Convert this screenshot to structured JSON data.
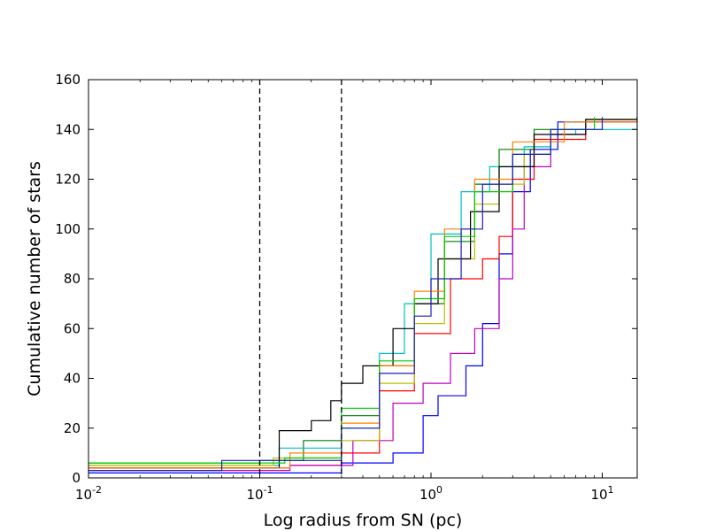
{
  "chart_data": {
    "type": "line",
    "step": true,
    "xscale": "log",
    "xlabel": "Log radius from SN (pc)",
    "ylabel": "Cumulative number of stars",
    "xlim": [
      0.01,
      16
    ],
    "ylim": [
      0,
      160
    ],
    "grid": false,
    "legend": "none",
    "x_ticks": [
      {
        "value": 0.01,
        "base": "10",
        "exp": "-2"
      },
      {
        "value": 0.1,
        "base": "10",
        "exp": "-1"
      },
      {
        "value": 1,
        "base": "10",
        "exp": "0"
      },
      {
        "value": 10,
        "base": "10",
        "exp": "1"
      }
    ],
    "y_ticks": [
      {
        "value": 0,
        "label": "0"
      },
      {
        "value": 20,
        "label": "20"
      },
      {
        "value": 40,
        "label": "40"
      },
      {
        "value": 60,
        "label": "60"
      },
      {
        "value": 80,
        "label": "80"
      },
      {
        "value": 100,
        "label": "100"
      },
      {
        "value": 120,
        "label": "120"
      },
      {
        "value": 140,
        "label": "140"
      },
      {
        "value": 160,
        "label": "160"
      }
    ],
    "vlines": [
      {
        "x": 0.1,
        "style": "dashed",
        "color": "#000000"
      },
      {
        "x": 0.3,
        "style": "dashed",
        "color": "#000000"
      }
    ],
    "series": [
      {
        "color": "#0000ff",
        "points": [
          [
            0.01,
            2
          ],
          [
            0.12,
            2
          ],
          [
            0.3,
            6
          ],
          [
            0.6,
            10
          ],
          [
            0.9,
            25
          ],
          [
            1.1,
            33
          ],
          [
            1.6,
            45
          ],
          [
            2.0,
            62
          ],
          [
            2.5,
            90
          ],
          [
            3.0,
            115
          ],
          [
            3.8,
            132
          ],
          [
            5.5,
            143
          ],
          [
            16,
            145
          ]
        ]
      },
      {
        "color": "#008000",
        "points": [
          [
            0.01,
            6
          ],
          [
            0.1,
            7
          ],
          [
            0.18,
            15
          ],
          [
            0.3,
            25
          ],
          [
            0.5,
            45
          ],
          [
            0.8,
            70
          ],
          [
            1.2,
            95
          ],
          [
            1.8,
            118
          ],
          [
            2.5,
            132
          ],
          [
            4.0,
            140
          ],
          [
            8.0,
            144
          ],
          [
            16,
            145
          ]
        ]
      },
      {
        "color": "#ff0000",
        "points": [
          [
            0.01,
            4
          ],
          [
            0.15,
            5
          ],
          [
            0.3,
            10
          ],
          [
            0.5,
            35
          ],
          [
            0.8,
            58
          ],
          [
            1.3,
            80
          ],
          [
            2.0,
            88
          ],
          [
            2.5,
            97
          ],
          [
            3.0,
            120
          ],
          [
            4.0,
            136
          ],
          [
            8.0,
            143
          ],
          [
            16,
            145
          ]
        ]
      },
      {
        "color": "#00bfbf",
        "points": [
          [
            0.01,
            5
          ],
          [
            0.13,
            12
          ],
          [
            0.3,
            20
          ],
          [
            0.5,
            50
          ],
          [
            0.7,
            70
          ],
          [
            1.0,
            98
          ],
          [
            1.5,
            115
          ],
          [
            2.2,
            125
          ],
          [
            3.5,
            133
          ],
          [
            5.0,
            138
          ],
          [
            7.0,
            140
          ],
          [
            16,
            145
          ]
        ]
      },
      {
        "color": "#bf00bf",
        "points": [
          [
            0.01,
            3
          ],
          [
            0.15,
            5
          ],
          [
            0.35,
            15
          ],
          [
            0.6,
            30
          ],
          [
            0.9,
            38
          ],
          [
            1.3,
            50
          ],
          [
            1.8,
            60
          ],
          [
            2.5,
            80
          ],
          [
            3.0,
            100
          ],
          [
            3.5,
            125
          ],
          [
            5.0,
            138
          ],
          [
            8.0,
            143
          ],
          [
            16,
            145
          ]
        ]
      },
      {
        "color": "#bfbf00",
        "points": [
          [
            0.01,
            5
          ],
          [
            0.12,
            8
          ],
          [
            0.3,
            15
          ],
          [
            0.5,
            38
          ],
          [
            0.8,
            62
          ],
          [
            1.2,
            88
          ],
          [
            1.8,
            110
          ],
          [
            2.5,
            118
          ],
          [
            3.5,
            130
          ],
          [
            5.0,
            140
          ],
          [
            8.0,
            144
          ],
          [
            16,
            145
          ]
        ]
      },
      {
        "color": "#000000",
        "points": [
          [
            0.01,
            4
          ],
          [
            0.13,
            19
          ],
          [
            0.2,
            23
          ],
          [
            0.26,
            31
          ],
          [
            0.3,
            38
          ],
          [
            0.4,
            45
          ],
          [
            0.6,
            60
          ],
          [
            0.8,
            70
          ],
          [
            1.1,
            88
          ],
          [
            1.7,
            107
          ],
          [
            2.5,
            125
          ],
          [
            4.0,
            138
          ],
          [
            8.0,
            144
          ],
          [
            16,
            145
          ]
        ]
      },
      {
        "color": "#ff8000",
        "points": [
          [
            0.01,
            4
          ],
          [
            0.15,
            10
          ],
          [
            0.3,
            22
          ],
          [
            0.5,
            45
          ],
          [
            0.8,
            75
          ],
          [
            1.2,
            100
          ],
          [
            1.8,
            120
          ],
          [
            3.0,
            135
          ],
          [
            6.0,
            143
          ],
          [
            16,
            145
          ]
        ]
      },
      {
        "color": "#00cc00",
        "points": [
          [
            0.01,
            6
          ],
          [
            0.14,
            8
          ],
          [
            0.3,
            28
          ],
          [
            0.5,
            47
          ],
          [
            0.8,
            72
          ],
          [
            1.2,
            97
          ],
          [
            1.8,
            115
          ],
          [
            3.0,
            130
          ],
          [
            5.0,
            140
          ],
          [
            9.0,
            145
          ]
        ]
      },
      {
        "color": "#1e1ebe",
        "points": [
          [
            0.01,
            3
          ],
          [
            0.06,
            7
          ],
          [
            0.3,
            20
          ],
          [
            0.5,
            42
          ],
          [
            0.8,
            65
          ],
          [
            1.0,
            80
          ],
          [
            1.5,
            100
          ],
          [
            2.0,
            118
          ],
          [
            3.0,
            130
          ],
          [
            5.0,
            140
          ],
          [
            10,
            145
          ]
        ]
      }
    ]
  }
}
